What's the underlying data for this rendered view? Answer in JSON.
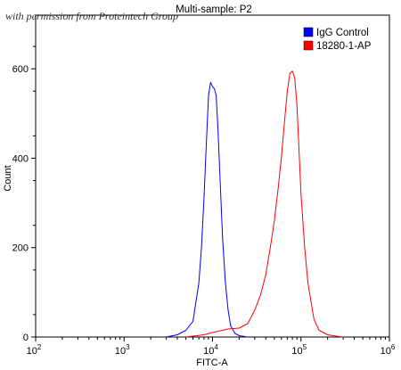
{
  "watermark": "with permission from Proteintech Group",
  "chart_data": {
    "type": "line",
    "title": "Multi-sample: P2",
    "xlabel": "FITC-A",
    "ylabel": "Count",
    "xscale": "log",
    "xlim": [
      100,
      1000000
    ],
    "ylim": [
      0,
      720
    ],
    "x_ticks": [
      {
        "value": 100,
        "base": "10",
        "exp": "2"
      },
      {
        "value": 1000,
        "base": "10",
        "exp": "3"
      },
      {
        "value": 10000,
        "base": "10",
        "exp": "4"
      },
      {
        "value": 100000,
        "base": "10",
        "exp": "5"
      },
      {
        "value": 1000000,
        "base": "10",
        "exp": "6"
      }
    ],
    "y_ticks": [
      0,
      200,
      400,
      600
    ],
    "legend_position": "top-right",
    "grid": false,
    "series": [
      {
        "name": "IgG Control",
        "color": "#0000ff",
        "x": [
          3000,
          4000,
          5000,
          6000,
          7000,
          7500,
          8000,
          8500,
          9000,
          9500,
          10000,
          10500,
          11000,
          11500,
          12000,
          13000,
          14000,
          15000,
          16000,
          18000,
          20000,
          25000
        ],
        "y": [
          0,
          5,
          15,
          35,
          120,
          200,
          310,
          430,
          540,
          570,
          560,
          555,
          540,
          470,
          380,
          220,
          120,
          60,
          25,
          8,
          3,
          0
        ]
      },
      {
        "name": "18280-1-AP",
        "color": "#ff0000",
        "x": [
          5000,
          8000,
          10000,
          15000,
          20000,
          25000,
          30000,
          35000,
          40000,
          45000,
          50000,
          55000,
          60000,
          65000,
          70000,
          75000,
          80000,
          85000,
          90000,
          95000,
          100000,
          110000,
          120000,
          140000,
          160000,
          200000,
          250000,
          300000
        ],
        "y": [
          0,
          5,
          10,
          18,
          20,
          30,
          60,
          95,
          140,
          200,
          260,
          330,
          400,
          480,
          550,
          590,
          595,
          580,
          520,
          420,
          320,
          200,
          120,
          40,
          15,
          5,
          2,
          0
        ]
      }
    ]
  }
}
